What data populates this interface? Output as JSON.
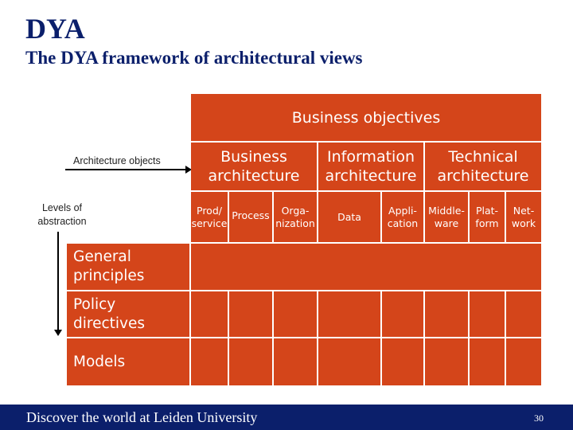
{
  "slide": {
    "title": "DYA",
    "subtitle": "The DYA framework of architectural views"
  },
  "labels": {
    "architecture_objects": "Architecture objects",
    "levels_line1": "Levels of",
    "levels_line2": "abstraction"
  },
  "framework": {
    "header": "Business objectives",
    "architectures": [
      {
        "line1": "Business",
        "line2": "architecture"
      },
      {
        "line1": "Information",
        "line2": "architecture"
      },
      {
        "line1": "Technical",
        "line2": "architecture"
      }
    ],
    "objects": [
      {
        "line1": "Prod/",
        "line2": "service"
      },
      {
        "line1": "Process",
        "line2": ""
      },
      {
        "line1": "Orga-",
        "line2": "nization"
      },
      {
        "line1": "Data",
        "line2": ""
      },
      {
        "line1": "Appli-",
        "line2": "cation"
      },
      {
        "line1": "Middle-",
        "line2": "ware"
      },
      {
        "line1": "Plat-",
        "line2": "form"
      },
      {
        "line1": "Net-",
        "line2": "work"
      }
    ],
    "levels": [
      {
        "line1": "General",
        "line2": "principles"
      },
      {
        "line1": "Policy",
        "line2": "directives"
      },
      {
        "line1": "Models",
        "line2": ""
      }
    ]
  },
  "footer": {
    "text": "Discover the world at Leiden University",
    "page": "30"
  },
  "colors": {
    "cell": "#d4451a",
    "title": "#0b1f6b",
    "footer_bg": "#0b1f6b"
  }
}
